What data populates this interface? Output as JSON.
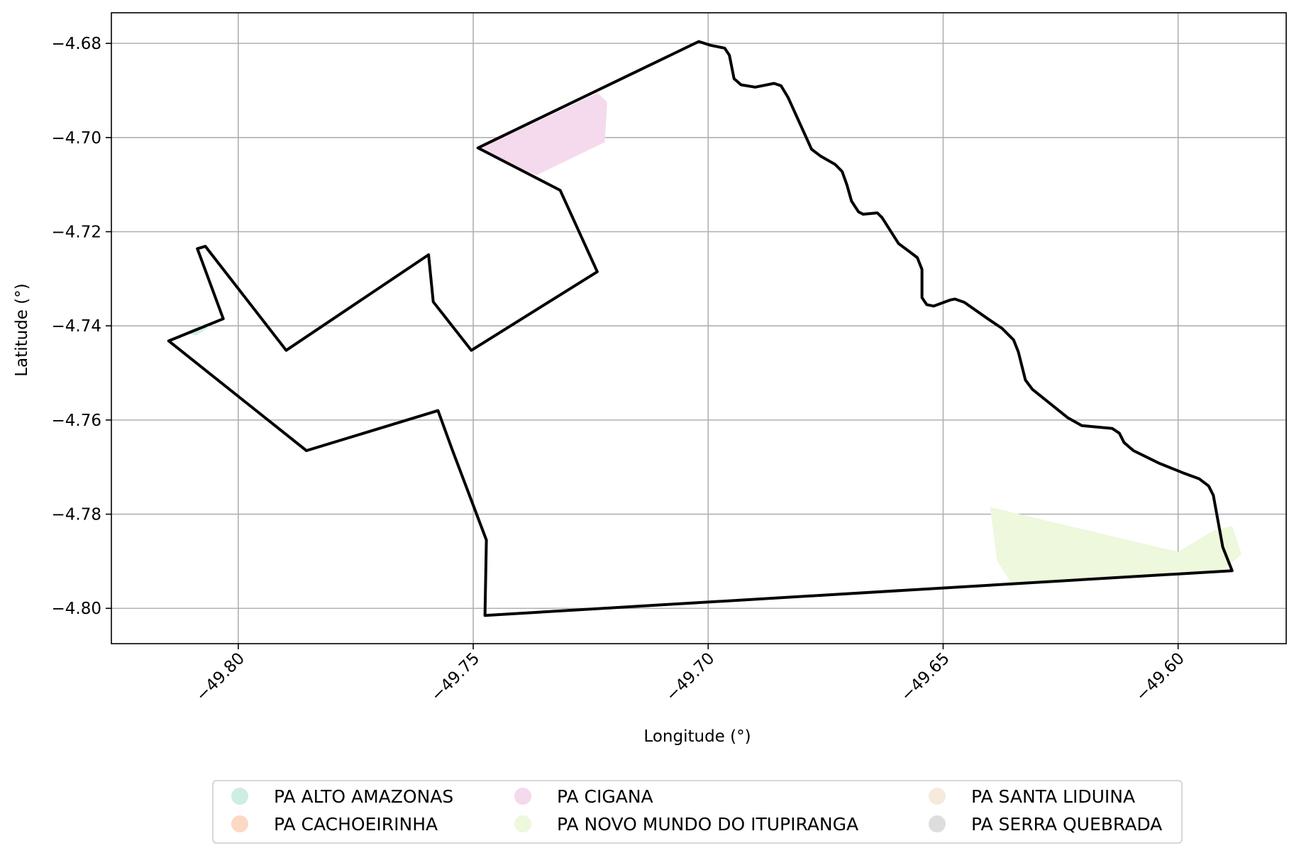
{
  "chart_data": {
    "type": "map",
    "xlabel": "Longitude (°)",
    "ylabel": "Latitude (°)",
    "xlim": [
      -49.827,
      -49.577
    ],
    "ylim": [
      -4.8075,
      -4.6735
    ],
    "grid": true,
    "x_ticks": [
      {
        "value": -49.8,
        "label": "−49.80"
      },
      {
        "value": -49.75,
        "label": "−49.75"
      },
      {
        "value": -49.7,
        "label": "−49.70"
      },
      {
        "value": -49.65,
        "label": "−49.65"
      },
      {
        "value": -49.6,
        "label": "−49.60"
      }
    ],
    "y_ticks": [
      {
        "value": -4.68,
        "label": "−4.68"
      },
      {
        "value": -4.7,
        "label": "−4.70"
      },
      {
        "value": -4.72,
        "label": "−4.72"
      },
      {
        "value": -4.74,
        "label": "−4.74"
      },
      {
        "value": -4.76,
        "label": "−4.76"
      },
      {
        "value": -4.78,
        "label": "−4.78"
      },
      {
        "value": -4.8,
        "label": "−4.80"
      }
    ],
    "legend_placement": "bottom-center",
    "legend": [
      {
        "label": "PA ALTO AMAZONAS",
        "color": "#cdeee0"
      },
      {
        "label": "PA CACHOEIRINHA",
        "color": "#fcd9c2"
      },
      {
        "label": "PA CIGANA",
        "color": "#f5d9ec"
      },
      {
        "label": "PA NOVO MUNDO DO ITUPIRANGA",
        "color": "#edf8dc"
      },
      {
        "label": "PA SANTA LIDUINA",
        "color": "#f6eadc"
      },
      {
        "label": "PA SERRA QUEBRADA",
        "color": "#dddddd"
      }
    ],
    "areas": [
      {
        "name": "PA ALTO AMAZONAS",
        "color": "#cdeee0",
        "coords": [
          [
            -49.8115,
            -4.7415
          ],
          [
            -49.807,
            -4.7395
          ],
          [
            -49.8065,
            -4.7405
          ],
          [
            -49.809,
            -4.742
          ],
          [
            -49.8115,
            -4.7415
          ]
        ]
      },
      {
        "name": "PA CIGANA",
        "color": "#f5d9ec",
        "coords": [
          [
            -49.749,
            -4.7025
          ],
          [
            -49.7235,
            -4.6905
          ],
          [
            -49.7215,
            -4.6925
          ],
          [
            -49.722,
            -4.701
          ],
          [
            -49.7345,
            -4.707
          ],
          [
            -49.7365,
            -4.708
          ],
          [
            -49.745,
            -4.7045
          ],
          [
            -49.749,
            -4.7025
          ]
        ]
      },
      {
        "name": "PA NOVO MUNDO DO ITUPIRANGA",
        "color": "#edf8dc",
        "coords": [
          [
            -49.64,
            -4.7785
          ],
          [
            -49.6275,
            -4.7815
          ],
          [
            -49.6,
            -4.788
          ],
          [
            -49.5925,
            -4.7835
          ],
          [
            -49.5885,
            -4.7825
          ],
          [
            -49.5865,
            -4.7885
          ],
          [
            -49.591,
            -4.7925
          ],
          [
            -49.6355,
            -4.7945
          ],
          [
            -49.6385,
            -4.79
          ],
          [
            -49.64,
            -4.7785
          ]
        ]
      }
    ],
    "boundary": {
      "color": "#000000",
      "coords": [
        [
          -49.749,
          -4.7022
        ],
        [
          -49.702,
          -4.6796
        ],
        [
          -49.6995,
          -4.6804
        ],
        [
          -49.6965,
          -4.681
        ],
        [
          -49.6955,
          -4.6825
        ],
        [
          -49.6945,
          -4.6875
        ],
        [
          -49.693,
          -4.6888
        ],
        [
          -49.69,
          -4.6893
        ],
        [
          -49.686,
          -4.6885
        ],
        [
          -49.6845,
          -4.689
        ],
        [
          -49.683,
          -4.6915
        ],
        [
          -49.678,
          -4.7025
        ],
        [
          -49.676,
          -4.704
        ],
        [
          -49.673,
          -4.7057
        ],
        [
          -49.6715,
          -4.7072
        ],
        [
          -49.6705,
          -4.71
        ],
        [
          -49.6695,
          -4.7135
        ],
        [
          -49.668,
          -4.7158
        ],
        [
          -49.667,
          -4.7163
        ],
        [
          -49.664,
          -4.716
        ],
        [
          -49.663,
          -4.717
        ],
        [
          -49.6595,
          -4.7225
        ],
        [
          -49.6575,
          -4.724
        ],
        [
          -49.6555,
          -4.7255
        ],
        [
          -49.6545,
          -4.728
        ],
        [
          -49.6545,
          -4.734
        ],
        [
          -49.6535,
          -4.7355
        ],
        [
          -49.652,
          -4.7358
        ],
        [
          -49.6485,
          -4.7345
        ],
        [
          -49.6475,
          -4.7343
        ],
        [
          -49.6455,
          -4.735
        ],
        [
          -49.6405,
          -4.7385
        ],
        [
          -49.6375,
          -4.7405
        ],
        [
          -49.635,
          -4.743
        ],
        [
          -49.634,
          -4.7455
        ],
        [
          -49.6325,
          -4.7515
        ],
        [
          -49.631,
          -4.7535
        ],
        [
          -49.6235,
          -4.7595
        ],
        [
          -49.6205,
          -4.7612
        ],
        [
          -49.614,
          -4.7618
        ],
        [
          -49.6125,
          -4.7628
        ],
        [
          -49.6115,
          -4.7648
        ],
        [
          -49.6095,
          -4.7665
        ],
        [
          -49.604,
          -4.7692
        ],
        [
          -49.599,
          -4.7712
        ],
        [
          -49.5955,
          -4.7725
        ],
        [
          -49.5935,
          -4.774
        ],
        [
          -49.5925,
          -4.776
        ],
        [
          -49.5905,
          -4.787
        ],
        [
          -49.5885,
          -4.792
        ],
        [
          -49.7475,
          -4.8015
        ],
        [
          -49.7472,
          -4.7855
        ],
        [
          -49.7545,
          -4.7662
        ],
        [
          -49.7575,
          -4.758
        ],
        [
          -49.7855,
          -4.7665
        ],
        [
          -49.8148,
          -4.7432
        ],
        [
          -49.8032,
          -4.7385
        ],
        [
          -49.8087,
          -4.7236
        ],
        [
          -49.807,
          -4.7231
        ],
        [
          -49.7898,
          -4.7452
        ],
        [
          -49.7595,
          -4.7249
        ],
        [
          -49.7585,
          -4.7349
        ],
        [
          -49.7504,
          -4.7452
        ],
        [
          -49.7236,
          -4.7285
        ],
        [
          -49.7315,
          -4.7112
        ],
        [
          -49.749,
          -4.7022
        ]
      ]
    }
  }
}
